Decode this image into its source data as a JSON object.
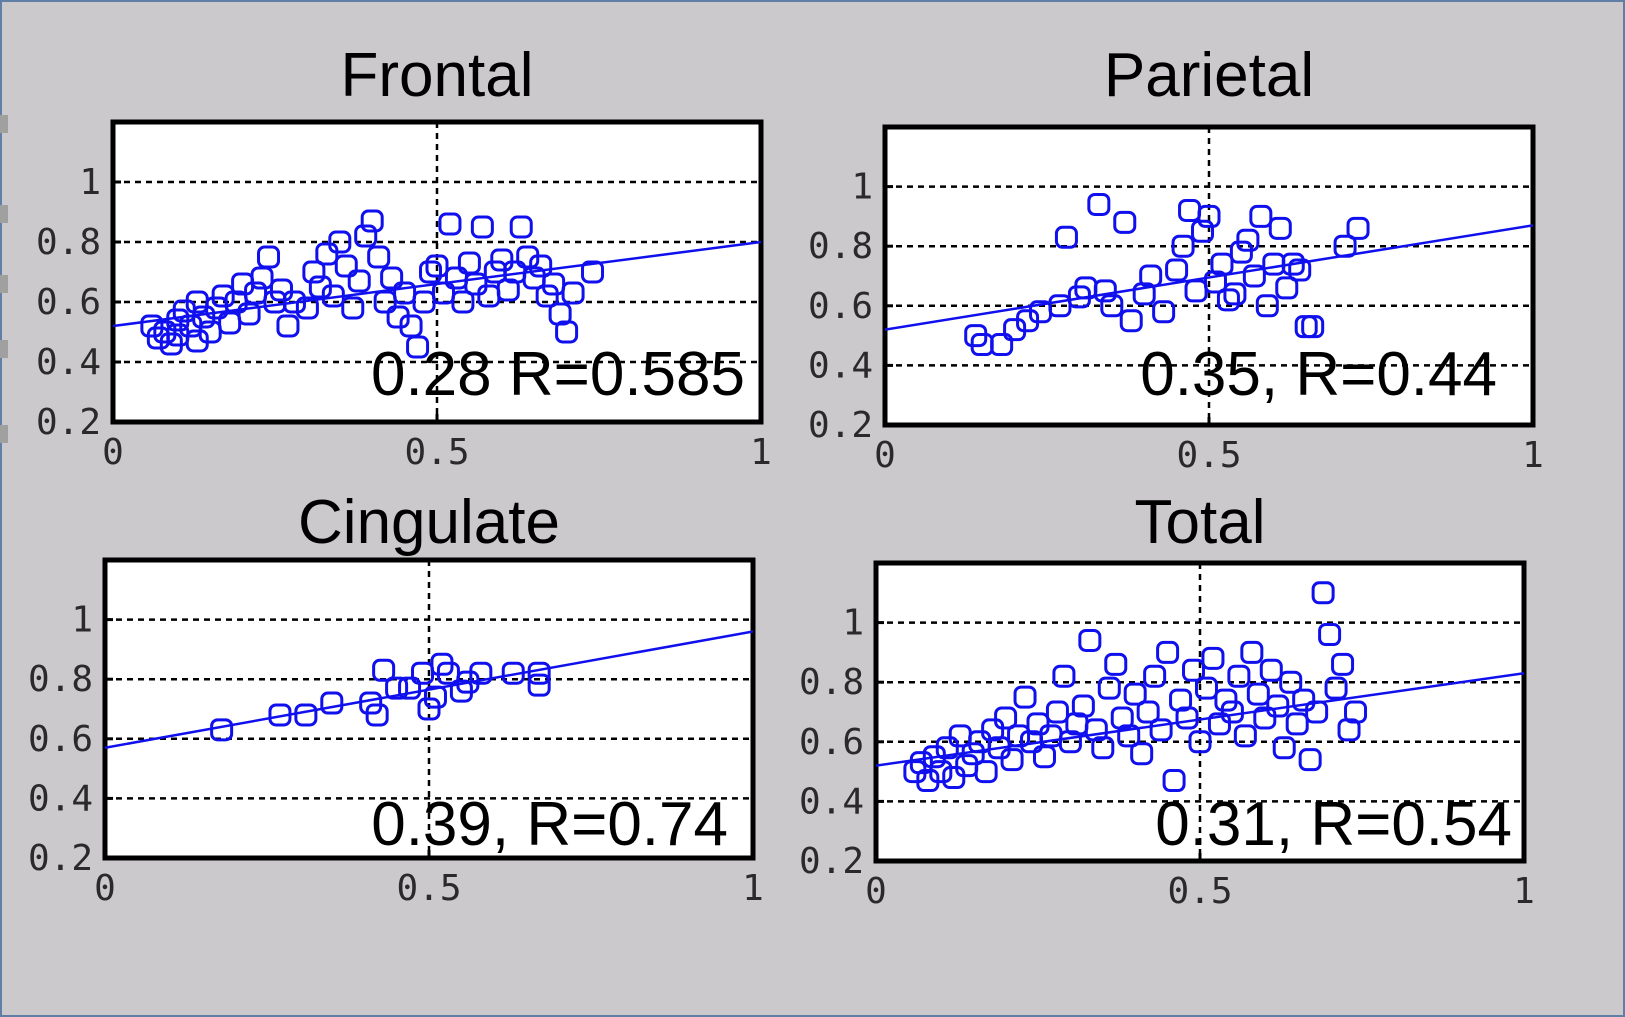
{
  "chart_data": [
    {
      "type": "scatter",
      "title": "Frontal",
      "annotation": "0.28 R=0.585",
      "xlim": [
        0,
        1
      ],
      "ylim": [
        0.2,
        1.2
      ],
      "xticks": [
        "0",
        "0.5",
        "1"
      ],
      "yticks": [
        "0.2",
        "0.4",
        "0.6",
        "0.8",
        "1"
      ],
      "grid": true,
      "fit_line": {
        "intercept": 0.52,
        "slope": 0.28
      },
      "series": [
        {
          "points": [
            [
              0.06,
              0.52
            ],
            [
              0.07,
              0.48
            ],
            [
              0.08,
              0.5
            ],
            [
              0.09,
              0.46
            ],
            [
              0.1,
              0.54
            ],
            [
              0.1,
              0.49
            ],
            [
              0.11,
              0.57
            ],
            [
              0.12,
              0.52
            ],
            [
              0.13,
              0.47
            ],
            [
              0.13,
              0.6
            ],
            [
              0.14,
              0.55
            ],
            [
              0.15,
              0.5
            ],
            [
              0.16,
              0.58
            ],
            [
              0.17,
              0.62
            ],
            [
              0.18,
              0.53
            ],
            [
              0.19,
              0.6
            ],
            [
              0.2,
              0.66
            ],
            [
              0.21,
              0.56
            ],
            [
              0.22,
              0.63
            ],
            [
              0.23,
              0.68
            ],
            [
              0.24,
              0.75
            ],
            [
              0.25,
              0.6
            ],
            [
              0.26,
              0.64
            ],
            [
              0.27,
              0.52
            ],
            [
              0.28,
              0.6
            ],
            [
              0.3,
              0.58
            ],
            [
              0.31,
              0.7
            ],
            [
              0.32,
              0.65
            ],
            [
              0.33,
              0.76
            ],
            [
              0.34,
              0.62
            ],
            [
              0.35,
              0.8
            ],
            [
              0.36,
              0.72
            ],
            [
              0.37,
              0.58
            ],
            [
              0.38,
              0.67
            ],
            [
              0.39,
              0.82
            ],
            [
              0.4,
              0.87
            ],
            [
              0.41,
              0.75
            ],
            [
              0.42,
              0.6
            ],
            [
              0.43,
              0.68
            ],
            [
              0.44,
              0.55
            ],
            [
              0.45,
              0.63
            ],
            [
              0.46,
              0.52
            ],
            [
              0.47,
              0.45
            ],
            [
              0.48,
              0.6
            ],
            [
              0.49,
              0.7
            ],
            [
              0.5,
              0.72
            ],
            [
              0.51,
              0.63
            ],
            [
              0.52,
              0.86
            ],
            [
              0.53,
              0.68
            ],
            [
              0.54,
              0.6
            ],
            [
              0.55,
              0.73
            ],
            [
              0.56,
              0.66
            ],
            [
              0.57,
              0.85
            ],
            [
              0.58,
              0.62
            ],
            [
              0.59,
              0.7
            ],
            [
              0.6,
              0.74
            ],
            [
              0.61,
              0.64
            ],
            [
              0.62,
              0.7
            ],
            [
              0.63,
              0.85
            ],
            [
              0.64,
              0.75
            ],
            [
              0.65,
              0.68
            ],
            [
              0.66,
              0.72
            ],
            [
              0.67,
              0.62
            ],
            [
              0.68,
              0.66
            ],
            [
              0.69,
              0.56
            ],
            [
              0.7,
              0.5
            ],
            [
              0.71,
              0.63
            ],
            [
              0.74,
              0.7
            ]
          ]
        }
      ]
    },
    {
      "type": "scatter",
      "title": "Parietal",
      "annotation": "0.35, R=0.44",
      "xlim": [
        0,
        1
      ],
      "ylim": [
        0.2,
        1.2
      ],
      "xticks": [
        "0",
        "0.5",
        "1"
      ],
      "yticks": [
        "0.2",
        "0.4",
        "0.6",
        "0.8",
        "1"
      ],
      "grid": true,
      "fit_line": {
        "intercept": 0.52,
        "slope": 0.35
      },
      "series": [
        {
          "points": [
            [
              0.14,
              0.5
            ],
            [
              0.15,
              0.47
            ],
            [
              0.18,
              0.47
            ],
            [
              0.2,
              0.52
            ],
            [
              0.22,
              0.55
            ],
            [
              0.24,
              0.58
            ],
            [
              0.27,
              0.6
            ],
            [
              0.28,
              0.83
            ],
            [
              0.3,
              0.63
            ],
            [
              0.31,
              0.66
            ],
            [
              0.33,
              0.94
            ],
            [
              0.34,
              0.65
            ],
            [
              0.35,
              0.6
            ],
            [
              0.37,
              0.88
            ],
            [
              0.38,
              0.55
            ],
            [
              0.4,
              0.64
            ],
            [
              0.41,
              0.7
            ],
            [
              0.43,
              0.58
            ],
            [
              0.45,
              0.72
            ],
            [
              0.46,
              0.8
            ],
            [
              0.47,
              0.92
            ],
            [
              0.48,
              0.65
            ],
            [
              0.49,
              0.85
            ],
            [
              0.5,
              0.9
            ],
            [
              0.51,
              0.68
            ],
            [
              0.52,
              0.74
            ],
            [
              0.53,
              0.62
            ],
            [
              0.54,
              0.64
            ],
            [
              0.55,
              0.78
            ],
            [
              0.56,
              0.82
            ],
            [
              0.57,
              0.7
            ],
            [
              0.58,
              0.9
            ],
            [
              0.59,
              0.6
            ],
            [
              0.6,
              0.74
            ],
            [
              0.61,
              0.86
            ],
            [
              0.62,
              0.66
            ],
            [
              0.63,
              0.74
            ],
            [
              0.64,
              0.72
            ],
            [
              0.65,
              0.53
            ],
            [
              0.66,
              0.53
            ],
            [
              0.71,
              0.8
            ],
            [
              0.73,
              0.86
            ]
          ]
        }
      ]
    },
    {
      "type": "scatter",
      "title": "Cingulate",
      "annotation": "0.39, R=0.74",
      "xlim": [
        0,
        1
      ],
      "ylim": [
        0.2,
        1.2
      ],
      "xticks": [
        "0",
        "0.5",
        "1"
      ],
      "yticks": [
        "0.2",
        "0.4",
        "0.6",
        "0.8",
        "1"
      ],
      "grid": true,
      "fit_line": {
        "intercept": 0.57,
        "slope": 0.39
      },
      "series": [
        {
          "points": [
            [
              0.18,
              0.63
            ],
            [
              0.27,
              0.68
            ],
            [
              0.31,
              0.68
            ],
            [
              0.35,
              0.72
            ],
            [
              0.41,
              0.72
            ],
            [
              0.42,
              0.68
            ],
            [
              0.43,
              0.83
            ],
            [
              0.45,
              0.77
            ],
            [
              0.47,
              0.77
            ],
            [
              0.49,
              0.82
            ],
            [
              0.5,
              0.7
            ],
            [
              0.51,
              0.74
            ],
            [
              0.52,
              0.85
            ],
            [
              0.53,
              0.82
            ],
            [
              0.55,
              0.76
            ],
            [
              0.56,
              0.79
            ],
            [
              0.58,
              0.82
            ],
            [
              0.63,
              0.82
            ],
            [
              0.67,
              0.78
            ],
            [
              0.67,
              0.82
            ]
          ]
        }
      ]
    },
    {
      "type": "scatter",
      "title": "Total",
      "annotation": "0.31, R=0.54",
      "xlim": [
        0,
        1
      ],
      "ylim": [
        0.2,
        1.2
      ],
      "xticks": [
        "0",
        "0.5",
        "1"
      ],
      "yticks": [
        "0.2",
        "0.4",
        "0.6",
        "0.8",
        "1"
      ],
      "grid": true,
      "fit_line": {
        "intercept": 0.52,
        "slope": 0.31
      },
      "series": [
        {
          "points": [
            [
              0.06,
              0.5
            ],
            [
              0.07,
              0.53
            ],
            [
              0.08,
              0.47
            ],
            [
              0.09,
              0.55
            ],
            [
              0.1,
              0.5
            ],
            [
              0.11,
              0.58
            ],
            [
              0.12,
              0.48
            ],
            [
              0.13,
              0.62
            ],
            [
              0.14,
              0.52
            ],
            [
              0.15,
              0.56
            ],
            [
              0.16,
              0.6
            ],
            [
              0.17,
              0.5
            ],
            [
              0.18,
              0.64
            ],
            [
              0.19,
              0.58
            ],
            [
              0.2,
              0.68
            ],
            [
              0.21,
              0.54
            ],
            [
              0.22,
              0.62
            ],
            [
              0.23,
              0.75
            ],
            [
              0.24,
              0.6
            ],
            [
              0.25,
              0.66
            ],
            [
              0.26,
              0.55
            ],
            [
              0.27,
              0.62
            ],
            [
              0.28,
              0.7
            ],
            [
              0.29,
              0.82
            ],
            [
              0.3,
              0.6
            ],
            [
              0.31,
              0.66
            ],
            [
              0.32,
              0.72
            ],
            [
              0.33,
              0.94
            ],
            [
              0.34,
              0.64
            ],
            [
              0.35,
              0.58
            ],
            [
              0.36,
              0.78
            ],
            [
              0.37,
              0.86
            ],
            [
              0.38,
              0.68
            ],
            [
              0.39,
              0.62
            ],
            [
              0.4,
              0.76
            ],
            [
              0.41,
              0.56
            ],
            [
              0.42,
              0.7
            ],
            [
              0.43,
              0.82
            ],
            [
              0.44,
              0.64
            ],
            [
              0.45,
              0.9
            ],
            [
              0.46,
              0.47
            ],
            [
              0.47,
              0.74
            ],
            [
              0.48,
              0.68
            ],
            [
              0.49,
              0.84
            ],
            [
              0.5,
              0.6
            ],
            [
              0.51,
              0.78
            ],
            [
              0.52,
              0.88
            ],
            [
              0.53,
              0.66
            ],
            [
              0.54,
              0.74
            ],
            [
              0.55,
              0.7
            ],
            [
              0.56,
              0.82
            ],
            [
              0.57,
              0.62
            ],
            [
              0.58,
              0.9
            ],
            [
              0.59,
              0.76
            ],
            [
              0.6,
              0.68
            ],
            [
              0.61,
              0.84
            ],
            [
              0.62,
              0.72
            ],
            [
              0.63,
              0.58
            ],
            [
              0.64,
              0.8
            ],
            [
              0.65,
              0.66
            ],
            [
              0.66,
              0.74
            ],
            [
              0.67,
              0.54
            ],
            [
              0.68,
              0.7
            ],
            [
              0.69,
              1.1
            ],
            [
              0.7,
              0.96
            ],
            [
              0.71,
              0.78
            ],
            [
              0.72,
              0.86
            ],
            [
              0.73,
              0.64
            ],
            [
              0.74,
              0.7
            ]
          ]
        }
      ]
    }
  ]
}
